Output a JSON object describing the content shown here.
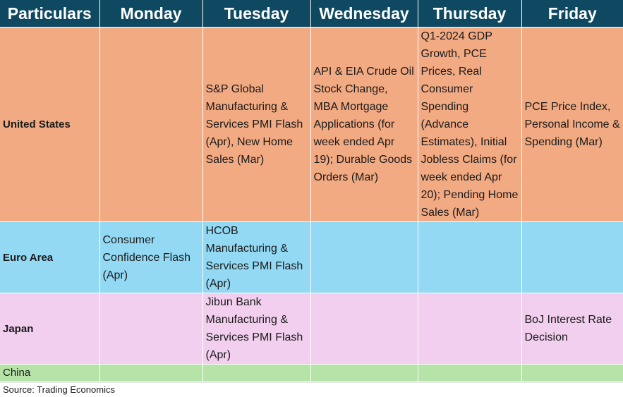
{
  "columns": [
    "Particulars",
    "Monday",
    "Tuesday",
    "Wednesday",
    "Thursday",
    "Friday"
  ],
  "rows": [
    {
      "label": "United States",
      "cells": [
        "",
        "S&P Global Manufacturing & Services PMI Flash (Apr), New Home Sales (Mar)",
        "API & EIA Crude Oil Stock Change, MBA Mortgage Applications (for week ended Apr 19); Durable Goods Orders (Mar)",
        "Q1-2024 GDP Growth, PCE Prices, Real Consumer Spending (Advance Estimates), Initial Jobless Claims (for week ended Apr 20); Pending Home Sales (Mar)",
        "PCE Price Index, Personal Income & Spending (Mar)"
      ]
    },
    {
      "label": "Euro Area",
      "cells": [
        "Consumer Confidence Flash (Apr)",
        "HCOB Manufacturing & Services PMI Flash (Apr)",
        "",
        "",
        ""
      ]
    },
    {
      "label": "Japan",
      "cells": [
        "",
        "Jibun Bank Manufacturing & Services PMI Flash (Apr)",
        "",
        "",
        "BoJ Interest Rate Decision"
      ]
    },
    {
      "label": "China",
      "cells": [
        "",
        "",
        "",
        "",
        ""
      ]
    }
  ],
  "source": "Source: Trading Economics",
  "colors": {
    "header_bg": "#0f4961",
    "us_row": "#f2aa83",
    "euro_row": "#93d9f3",
    "japan_row": "#f2cfee",
    "china_row": "#b5e3a8"
  }
}
